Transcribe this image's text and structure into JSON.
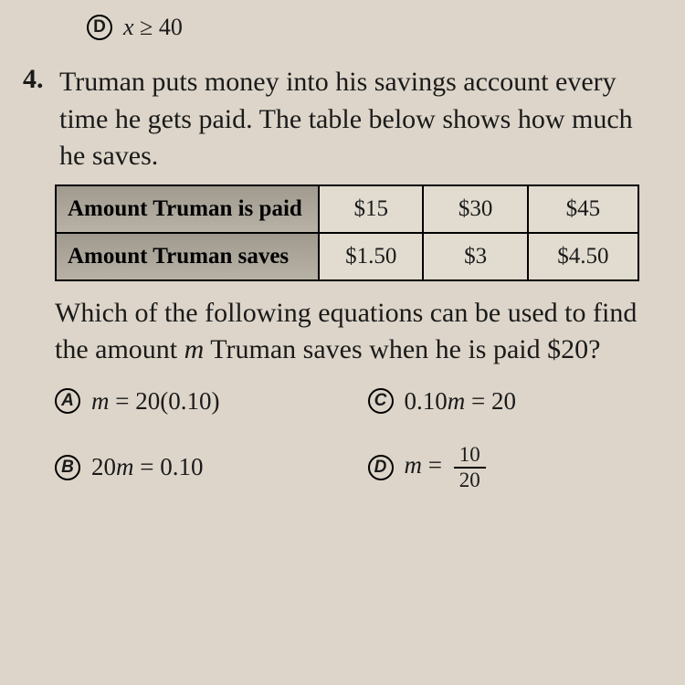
{
  "top_option": {
    "letter": "D",
    "text": "x ≥ 40"
  },
  "question": {
    "number": "4.",
    "text": "Truman puts money into his savings account every time he gets paid. The table below shows how much he saves."
  },
  "table": {
    "row1": {
      "header": "Amount Truman is paid",
      "c1": "$15",
      "c2": "$30",
      "c3": "$45"
    },
    "row2": {
      "header": "Amount Truman saves",
      "c1": "$1.50",
      "c2": "$3",
      "c3": "$4.50"
    }
  },
  "followup": "Which of the following equations can be used to find the amount m Truman saves when he is paid $20?",
  "options": {
    "a": {
      "letter": "A",
      "text": "m = 20(0.10)"
    },
    "b": {
      "letter": "B",
      "text": "20m = 0.10"
    },
    "c": {
      "letter": "C",
      "text": "0.10m = 20"
    },
    "d": {
      "letter": "D",
      "prefix": "m = ",
      "frac_top": "10",
      "frac_bot": "20"
    }
  },
  "colors": {
    "background": "#ddd5c9",
    "text": "#1a1a1a",
    "border": "#000000",
    "table_header_bg": "#a09a8f",
    "table_cell_bg": "#e2dcd0"
  },
  "typography": {
    "body_fontsize": 30,
    "option_fontsize": 27,
    "table_fontsize": 25,
    "font_family": "Georgia"
  }
}
